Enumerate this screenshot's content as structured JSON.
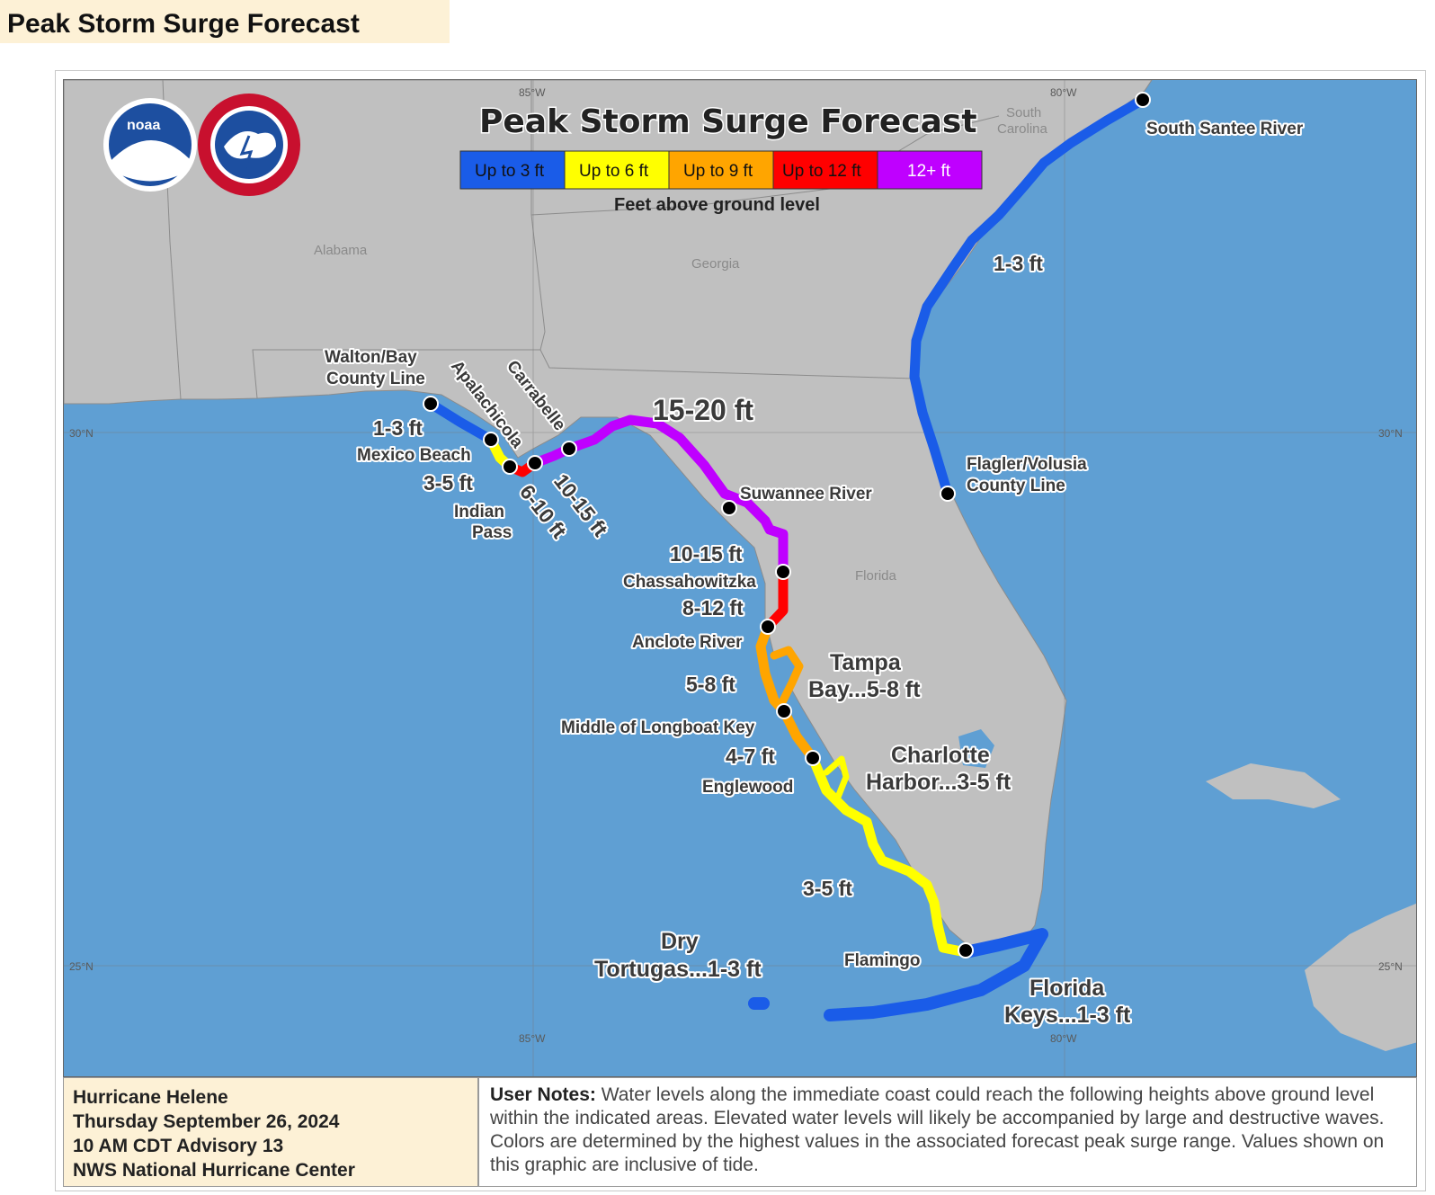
{
  "page": {
    "heading": "Peak Storm Surge Forecast"
  },
  "map": {
    "title": "Peak Storm Surge Forecast",
    "legend": {
      "items": [
        {
          "label": "Up to 3 ft",
          "color": "#1a5ce8"
        },
        {
          "label": "Up to 6 ft",
          "color": "#ffff00"
        },
        {
          "label": "Up to 9 ft",
          "color": "#ffa500"
        },
        {
          "label": "Up to 12 ft",
          "color": "#ff0000"
        },
        {
          "label": "12+ ft",
          "color": "#bf00ff"
        }
      ],
      "caption": "Feet above ground level"
    },
    "logos": [
      "noaa-logo",
      "national-weather-service-logo"
    ],
    "states": {
      "alabama": "Alabama",
      "georgia": "Georgia",
      "south_carolina_1": "South",
      "south_carolina_2": "Carolina",
      "florida": "Florida"
    },
    "gridlines": {
      "lon_85": "85°W",
      "lon_80": "80°W",
      "lat_30": "30°N",
      "lat_25": "25°N"
    },
    "points": {
      "south_santee": "South Santee River",
      "flagler_1": "Flagler/Volusia",
      "flagler_2": "County Line",
      "walton_1": "Walton/Bay",
      "walton_2": "County Line",
      "apalachicola": "Apalachicola",
      "carrabelle": "Carrabelle",
      "mexico_beach": "Mexico Beach",
      "indian_1": "Indian",
      "indian_2": "Pass",
      "suwannee": "Suwannee River",
      "chassahowitzka": "Chassahowitzka",
      "anclote": "Anclote River",
      "longboat": "Middle of Longboat Key",
      "englewood": "Englewood",
      "flamingo": "Flamingo"
    },
    "surge_labels": {
      "east_coast": "1-3 ft",
      "walton_mexico": "1-3 ft",
      "mexico_indian": "3-5 ft",
      "indian_apalach": "6-10 ft",
      "apalach_carrabelle": "10-15 ft",
      "big_bend": "15-20 ft",
      "suwannee_chass": "10-15 ft",
      "chass_anclote": "8-12 ft",
      "anclote_longboat": "5-8 ft",
      "longboat_englewood": "4-7 ft",
      "englewood_flamingo": "3-5 ft"
    },
    "areas": {
      "tampa_1": "Tampa",
      "tampa_2": "Bay...5-8 ft",
      "charlotte_1": "Charlotte",
      "charlotte_2": "Harbor...3-5 ft",
      "tortugas_1": "Dry",
      "tortugas_2": "Tortugas...1-3 ft",
      "keys_1": "Florida",
      "keys_2": "Keys...1-3 ft"
    },
    "colors": {
      "water": "#5f9fd3",
      "land": "#c0c0c0",
      "point": "#000000"
    }
  },
  "info": {
    "storm": "Hurricane Helene",
    "date": "Thursday September 26, 2024",
    "advisory": "10 AM CDT Advisory 13",
    "center": "NWS National Hurricane Center"
  },
  "notes": {
    "label": "User Notes:",
    "text": " Water levels along the immediate coast could reach the following heights above ground level within the indicated areas. Elevated water levels will likely be accompanied by large and destructive waves. Colors are determined by the highest values in the associated forecast peak surge range. Values shown on this graphic are inclusive of tide."
  }
}
